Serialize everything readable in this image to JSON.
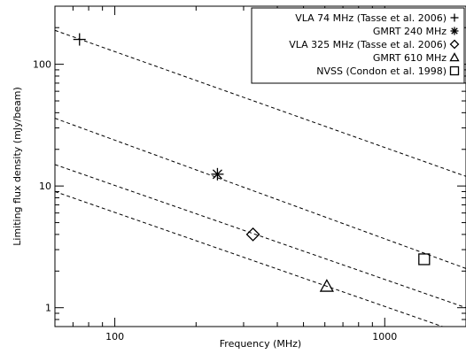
{
  "chart_data": {
    "type": "scatter",
    "title": "",
    "xlabel": "Frequency (MHz)",
    "ylabel": "Limiting flux density (mJy/beam)",
    "x_scale": "log",
    "y_scale": "log",
    "xlim": [
      60,
      2000
    ],
    "ylim": [
      0.7,
      300
    ],
    "x_ticks": [
      {
        "value": 100,
        "label": "100"
      },
      {
        "value": 1000,
        "label": "1000"
      }
    ],
    "y_ticks": [
      {
        "value": 1,
        "label": "1"
      },
      {
        "value": 10,
        "label": "10"
      },
      {
        "value": 100,
        "label": "100"
      }
    ],
    "grid": false,
    "legend_position": "top-right",
    "series": [
      {
        "name": "VLA 74 MHz (Tasse et al. 2006)",
        "marker": "plus",
        "x": [
          74
        ],
        "y": [
          160
        ]
      },
      {
        "name": "GMRT 240 MHz",
        "marker": "asterisk",
        "x": [
          240
        ],
        "y": [
          12.5
        ]
      },
      {
        "name": "VLA 325 MHz (Tasse et al. 2006)",
        "marker": "diamond",
        "x": [
          325
        ],
        "y": [
          4
        ]
      },
      {
        "name": "GMRT 610 MHz",
        "marker": "triangle",
        "x": [
          610
        ],
        "y": [
          1.5
        ]
      },
      {
        "name": "NVSS (Condon et al. 1998)",
        "marker": "square",
        "x": [
          1400
        ],
        "y": [
          2.5
        ]
      }
    ],
    "reference_lines": [
      {
        "style": "dashed",
        "x": [
          60,
          2000
        ],
        "y": [
          190,
          12
        ]
      },
      {
        "style": "dashed",
        "x": [
          60,
          2000
        ],
        "y": [
          36,
          2.1
        ]
      },
      {
        "style": "dashed",
        "x": [
          60,
          2000
        ],
        "y": [
          15,
          1.0
        ]
      },
      {
        "style": "dashed",
        "x": [
          60,
          2000
        ],
        "y": [
          9,
          0.6
        ]
      }
    ]
  }
}
